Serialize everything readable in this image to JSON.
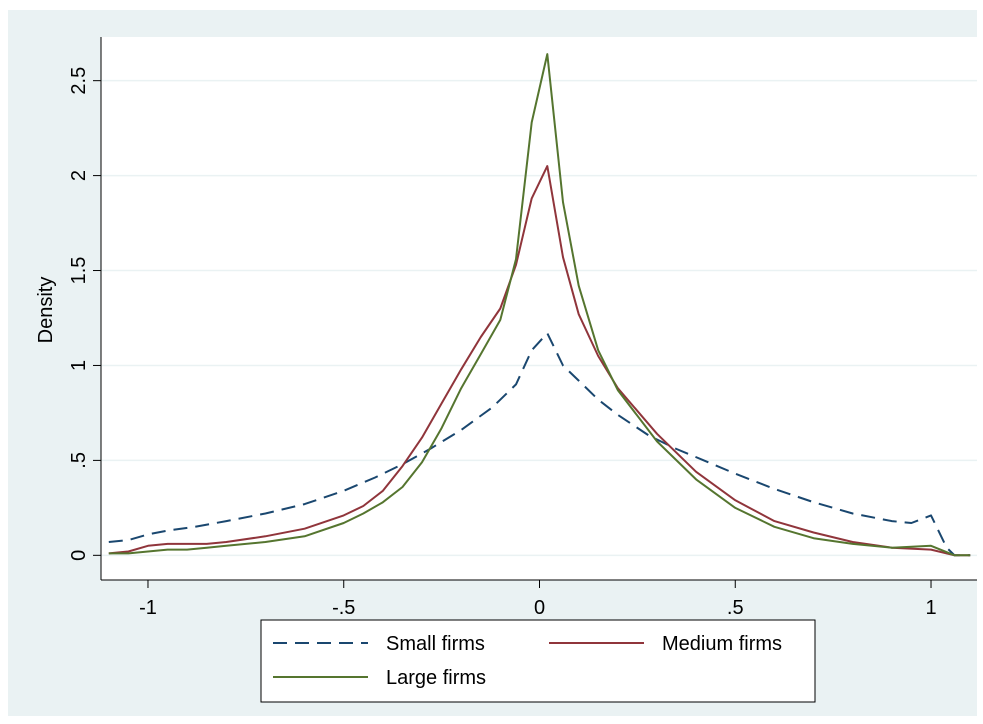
{
  "chart_data": {
    "type": "line",
    "title": "",
    "xlabel": "",
    "ylabel": "Density",
    "xlim": [
      -1.12,
      1.12
    ],
    "ylim": [
      -0.13,
      2.73
    ],
    "x_ticks": [
      -1,
      -0.5,
      0,
      0.5,
      1
    ],
    "x_tick_labels": [
      "-1",
      "-.5",
      "0",
      ".5",
      "1"
    ],
    "y_ticks": [
      0,
      0.5,
      1,
      1.5,
      2,
      2.5
    ],
    "y_tick_labels": [
      "0",
      ".5",
      "1",
      "1.5",
      "2",
      "2.5"
    ],
    "grid": true,
    "legend_position": "bottom",
    "series": [
      {
        "name": "Small firms",
        "color": "#1a476f",
        "dash": "dashed",
        "x": [
          -1.1,
          -1.05,
          -1.0,
          -0.95,
          -0.88,
          -0.8,
          -0.7,
          -0.6,
          -0.5,
          -0.42,
          -0.35,
          -0.28,
          -0.2,
          -0.12,
          -0.06,
          -0.02,
          0.02,
          0.06,
          0.1,
          0.15,
          0.2,
          0.28,
          0.35,
          0.42,
          0.5,
          0.6,
          0.7,
          0.8,
          0.9,
          0.95,
          1.0,
          1.04,
          1.06,
          1.1
        ],
        "y": [
          0.07,
          0.08,
          0.11,
          0.13,
          0.15,
          0.18,
          0.22,
          0.27,
          0.34,
          0.41,
          0.48,
          0.56,
          0.66,
          0.78,
          0.9,
          1.08,
          1.17,
          1.0,
          0.92,
          0.82,
          0.74,
          0.63,
          0.56,
          0.5,
          0.43,
          0.35,
          0.28,
          0.22,
          0.18,
          0.17,
          0.21,
          0.04,
          0.0,
          0.0
        ]
      },
      {
        "name": "Medium firms",
        "color": "#90353b",
        "dash": "solid",
        "x": [
          -1.1,
          -1.05,
          -1.0,
          -0.95,
          -0.9,
          -0.85,
          -0.8,
          -0.7,
          -0.6,
          -0.5,
          -0.45,
          -0.4,
          -0.35,
          -0.3,
          -0.25,
          -0.2,
          -0.15,
          -0.1,
          -0.06,
          -0.02,
          0.02,
          0.06,
          0.1,
          0.15,
          0.2,
          0.3,
          0.4,
          0.5,
          0.6,
          0.7,
          0.8,
          0.9,
          1.0,
          1.06,
          1.1
        ],
        "y": [
          0.01,
          0.02,
          0.05,
          0.06,
          0.06,
          0.06,
          0.07,
          0.1,
          0.14,
          0.21,
          0.26,
          0.34,
          0.47,
          0.62,
          0.8,
          0.98,
          1.15,
          1.3,
          1.53,
          1.88,
          2.05,
          1.57,
          1.27,
          1.05,
          0.88,
          0.64,
          0.44,
          0.29,
          0.18,
          0.12,
          0.07,
          0.04,
          0.03,
          0.0,
          0.0
        ]
      },
      {
        "name": "Large firms",
        "color": "#55752f",
        "dash": "solid",
        "x": [
          -1.1,
          -1.05,
          -1.0,
          -0.95,
          -0.9,
          -0.85,
          -0.8,
          -0.7,
          -0.6,
          -0.5,
          -0.45,
          -0.4,
          -0.35,
          -0.3,
          -0.25,
          -0.2,
          -0.15,
          -0.1,
          -0.06,
          -0.02,
          0.02,
          0.06,
          0.1,
          0.15,
          0.2,
          0.3,
          0.4,
          0.5,
          0.6,
          0.7,
          0.8,
          0.9,
          1.0,
          1.06,
          1.1
        ],
        "y": [
          0.01,
          0.01,
          0.02,
          0.03,
          0.03,
          0.04,
          0.05,
          0.07,
          0.1,
          0.17,
          0.22,
          0.28,
          0.36,
          0.49,
          0.67,
          0.88,
          1.06,
          1.24,
          1.56,
          2.28,
          2.64,
          1.86,
          1.42,
          1.08,
          0.87,
          0.6,
          0.4,
          0.25,
          0.15,
          0.09,
          0.06,
          0.04,
          0.05,
          0.0,
          0.0
        ]
      }
    ],
    "legend_order": [
      0,
      1,
      2
    ]
  },
  "colors": {
    "background": "#eaf2f3",
    "plot_area": "#ffffff",
    "grid": "#eaf2f3"
  }
}
